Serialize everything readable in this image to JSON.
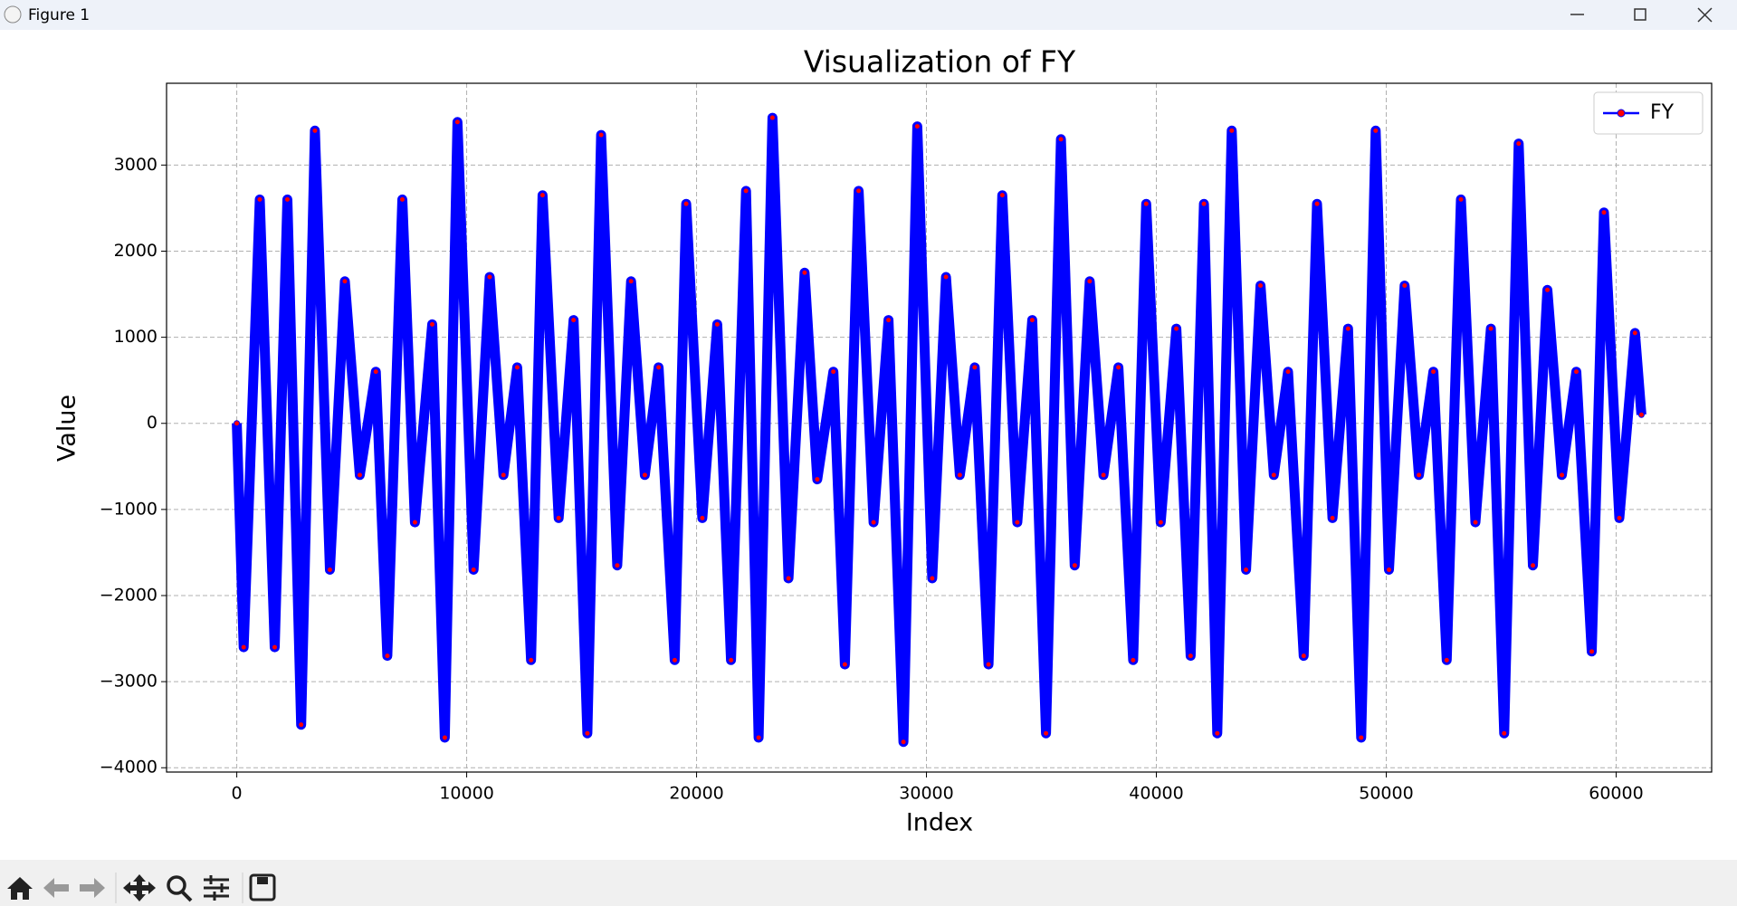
{
  "window_title": "Figure 1",
  "chart_data": {
    "type": "line",
    "title": "Visualization of FY",
    "x_label": "Index",
    "y_label": "Value",
    "x": [
      0,
      300,
      1000,
      1650,
      2200,
      2800,
      3400,
      4050,
      4700,
      5350,
      6050,
      6550,
      7200,
      7750,
      8500,
      9050,
      9600,
      10300,
      11000,
      11600,
      12200,
      12800,
      13300,
      14000,
      14650,
      15250,
      15850,
      16550,
      17150,
      17750,
      18350,
      19050,
      19550,
      20250,
      20900,
      21500,
      22150,
      22700,
      23300,
      24000,
      24700,
      25250,
      25950,
      26450,
      27050,
      27700,
      28350,
      29000,
      29600,
      30250,
      30850,
      31450,
      32100,
      32700,
      33300,
      33950,
      34600,
      35200,
      35850,
      36450,
      37100,
      37700,
      38350,
      38990,
      39560,
      40190,
      40870,
      41490,
      42070,
      42650,
      43280,
      43900,
      44530,
      45110,
      45730,
      46410,
      46990,
      47660,
      48340,
      48910,
      49540,
      50120,
      50800,
      51420,
      52050,
      52630,
      53250,
      53880,
      54550,
      55130,
      55760,
      56380,
      57010,
      57640,
      58270,
      58940,
      59470,
      60140,
      60820,
      61100
    ],
    "series": [
      {
        "name": "FY",
        "color": "#0000ff",
        "marker_color": "#ff0000",
        "values": [
          0,
          -2600,
          2600,
          -2600,
          2600,
          -3500,
          3400,
          -1700,
          1650,
          -600,
          600,
          -2700,
          2600,
          -1150,
          1150,
          -3650,
          3500,
          -1700,
          1700,
          -600,
          650,
          -2750,
          2650,
          -1100,
          1200,
          -3600,
          3350,
          -1650,
          1650,
          -600,
          650,
          -2750,
          2550,
          -1100,
          1150,
          -2750,
          2700,
          -3650,
          3550,
          -1800,
          1750,
          -650,
          600,
          -2800,
          2700,
          -1150,
          1200,
          -3700,
          3450,
          -1800,
          1700,
          -600,
          650,
          -2800,
          2650,
          -1150,
          1200,
          -3600,
          3300,
          -1650,
          1650,
          -600,
          650,
          -2750,
          2550,
          -1150,
          1100,
          -2700,
          2550,
          -3600,
          3400,
          -1700,
          1600,
          -600,
          600,
          -2700,
          2550,
          -1100,
          1100,
          -3650,
          3400,
          -1700,
          1600,
          -600,
          600,
          -2750,
          2600,
          -1150,
          1100,
          -3600,
          3250,
          -1650,
          1550,
          -600,
          600,
          -2650,
          2450,
          -1100,
          1050,
          100
        ]
      }
    ],
    "xlim": [
      -3055,
      64155
    ],
    "ylim": [
      -4050,
      3950
    ],
    "xticks": [
      0,
      10000,
      20000,
      30000,
      40000,
      50000,
      60000
    ],
    "yticks": [
      {
        "value": -4000,
        "label": "−4000"
      },
      {
        "value": -3000,
        "label": "−3000"
      },
      {
        "value": -2000,
        "label": "−2000"
      },
      {
        "value": -1000,
        "label": "−1000"
      },
      0,
      1000,
      2000,
      3000
    ],
    "grid": true,
    "legend": "upper right"
  }
}
